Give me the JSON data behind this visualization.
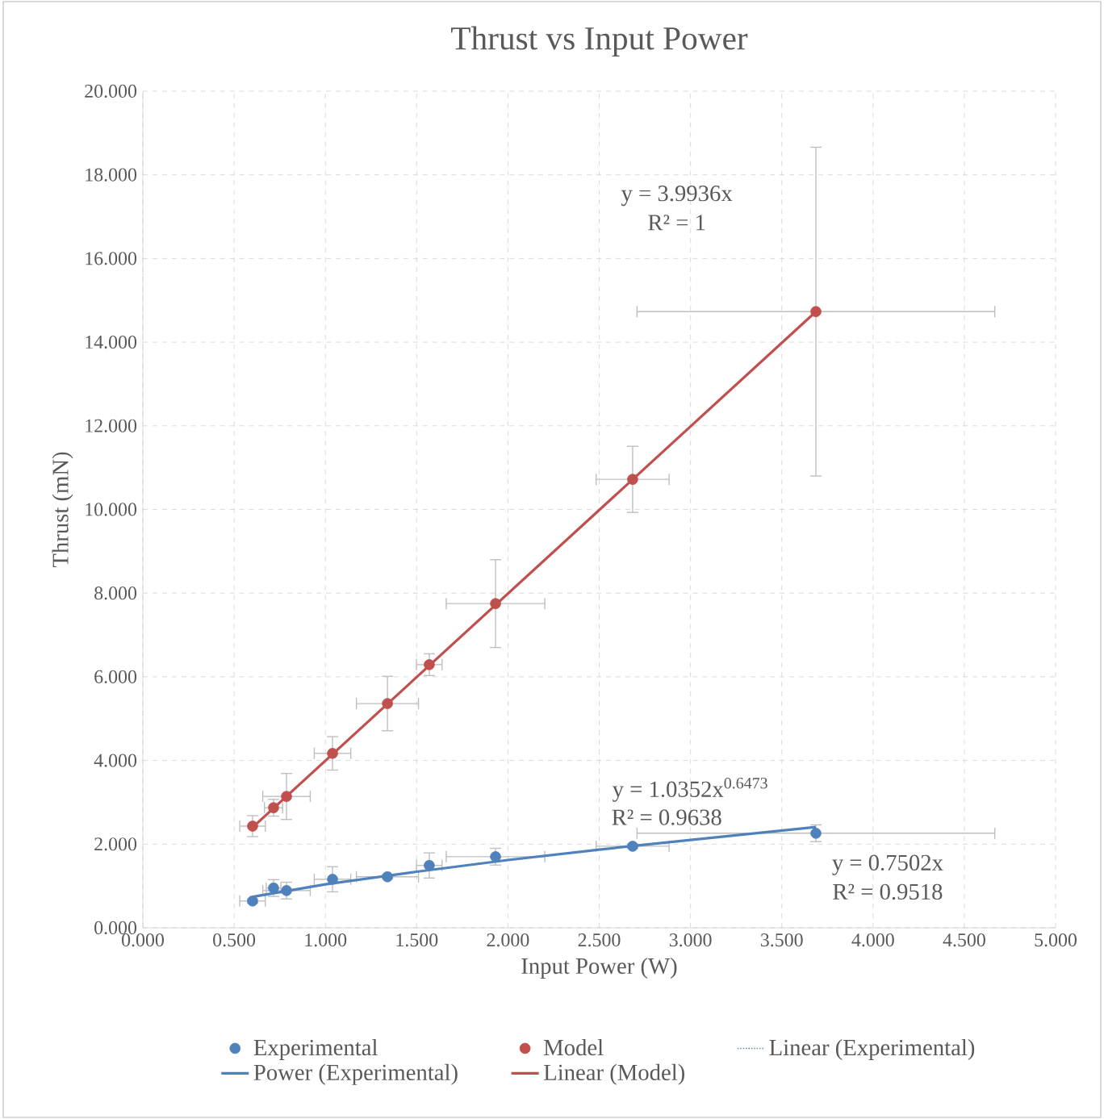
{
  "chart_data": {
    "type": "scatter",
    "title": "Thrust vs Input Power",
    "xlabel": "Input Power (W)",
    "ylabel": "Thrust (mN)",
    "x": [
      0.601,
      0.716,
      0.787,
      1.039,
      1.34,
      1.569,
      1.932,
      2.683,
      3.687
    ],
    "series": [
      {
        "name": "Experimental",
        "color": "#4f81bd",
        "values": [
          0.64,
          0.95,
          0.89,
          1.16,
          1.22,
          1.49,
          1.7,
          1.95,
          2.26
        ],
        "errors": [
          0.05,
          0.2,
          0.2,
          0.3,
          0.05,
          0.3,
          0.2,
          0.05,
          0.2
        ],
        "xerrors": [
          0.07,
          0.04,
          0.13,
          0.1,
          0.17,
          0.07,
          0.27,
          0.2,
          0.98
        ]
      },
      {
        "name": "Model",
        "color": "#c0504d",
        "values": [
          2.43,
          2.87,
          3.14,
          4.17,
          5.36,
          6.29,
          7.75,
          10.72,
          14.73
        ],
        "errors": [
          0.25,
          0.2,
          0.55,
          0.4,
          0.65,
          0.26,
          1.05,
          0.79,
          3.93
        ],
        "xerrors": [
          0.07,
          0.05,
          0.13,
          0.1,
          0.17,
          0.07,
          0.27,
          0.2,
          0.98
        ]
      },
      {
        "name": "Linear (Experimental)",
        "type": "line",
        "line_style": "dotted",
        "marker": "none",
        "color": "#4f81bd",
        "values": [
          null,
          null,
          null,
          null,
          null,
          null,
          null,
          null,
          null
        ]
      },
      {
        "name": "Power (Experimental)",
        "type": "line",
        "line_style": "solid",
        "marker": "none",
        "color": "#4f81bd",
        "x": [
          0.601,
          1.0,
          1.5,
          2.0,
          2.5,
          3.0,
          3.687
        ],
        "values": [
          0.74,
          1.04,
          1.34,
          1.62,
          1.87,
          2.1,
          2.41
        ]
      },
      {
        "name": "Linear (Model)",
        "type": "line",
        "line_style": "solid",
        "marker": "none",
        "color": "#c0504d",
        "x": [
          0.601,
          3.687
        ],
        "values": [
          2.4,
          14.73
        ]
      }
    ],
    "xlim": [
      0,
      5
    ],
    "ylim": [
      0,
      20
    ],
    "xticks": [
      {
        "value": 0,
        "label": "0.000"
      },
      {
        "value": 0.5,
        "label": "0.500"
      },
      {
        "value": 1,
        "label": "1.000"
      },
      {
        "value": 1.5,
        "label": "1.500"
      },
      {
        "value": 2,
        "label": "2.000"
      },
      {
        "value": 2.5,
        "label": "2.500"
      },
      {
        "value": 3,
        "label": "3.000"
      },
      {
        "value": 3.5,
        "label": "3.500"
      },
      {
        "value": 4,
        "label": "4.000"
      },
      {
        "value": 4.5,
        "label": "4.500"
      },
      {
        "value": 5,
        "label": "5.000"
      }
    ],
    "yticks": [
      {
        "value": 0,
        "label": "0.000"
      },
      {
        "value": 2,
        "label": "2.000"
      },
      {
        "value": 4,
        "label": "4.000"
      },
      {
        "value": 6,
        "label": "6.000"
      },
      {
        "value": 8,
        "label": "8.000"
      },
      {
        "value": 10,
        "label": "10.000"
      },
      {
        "value": 12,
        "label": "12.000"
      },
      {
        "value": 14,
        "label": "14.000"
      },
      {
        "value": 16,
        "label": "16.000"
      },
      {
        "value": 18,
        "label": "18.000"
      },
      {
        "value": 20,
        "label": "20.000"
      }
    ],
    "annotations": [
      "y = 3.9936x",
      "R² = 1",
      "y = 1.0352x$^{0.6473}$",
      "R² = 0.9638",
      "y = 0.7502x",
      "R² = 0.9518"
    ],
    "grid": true,
    "legend": "bottom",
    "marker": "circle"
  }
}
